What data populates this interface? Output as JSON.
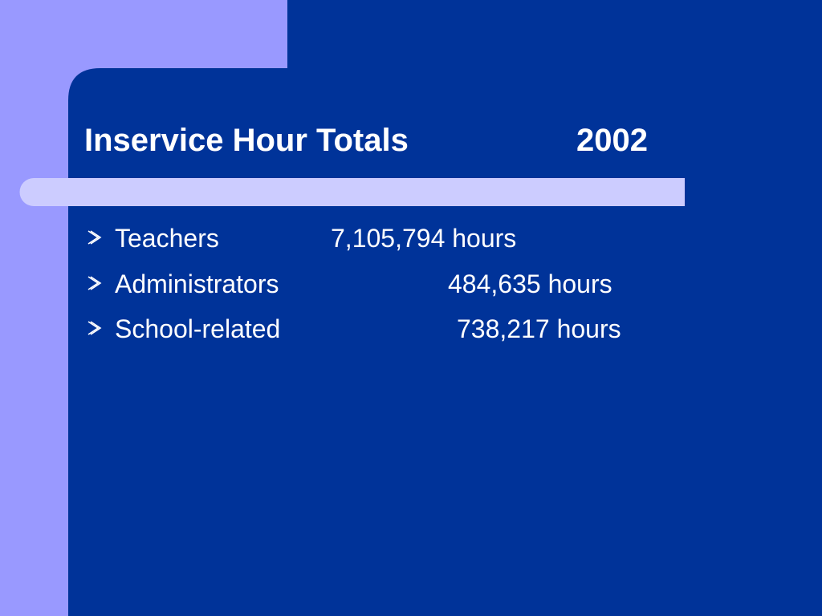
{
  "title": "Inservice Hour Totals",
  "year": "2002",
  "bullets": [
    {
      "label": "Teachers",
      "value": "7,105,794 hours"
    },
    {
      "label": "Administrators",
      "value": "484,635 hours"
    },
    {
      "label": "School-related",
      "value": "738,217 hours"
    }
  ]
}
